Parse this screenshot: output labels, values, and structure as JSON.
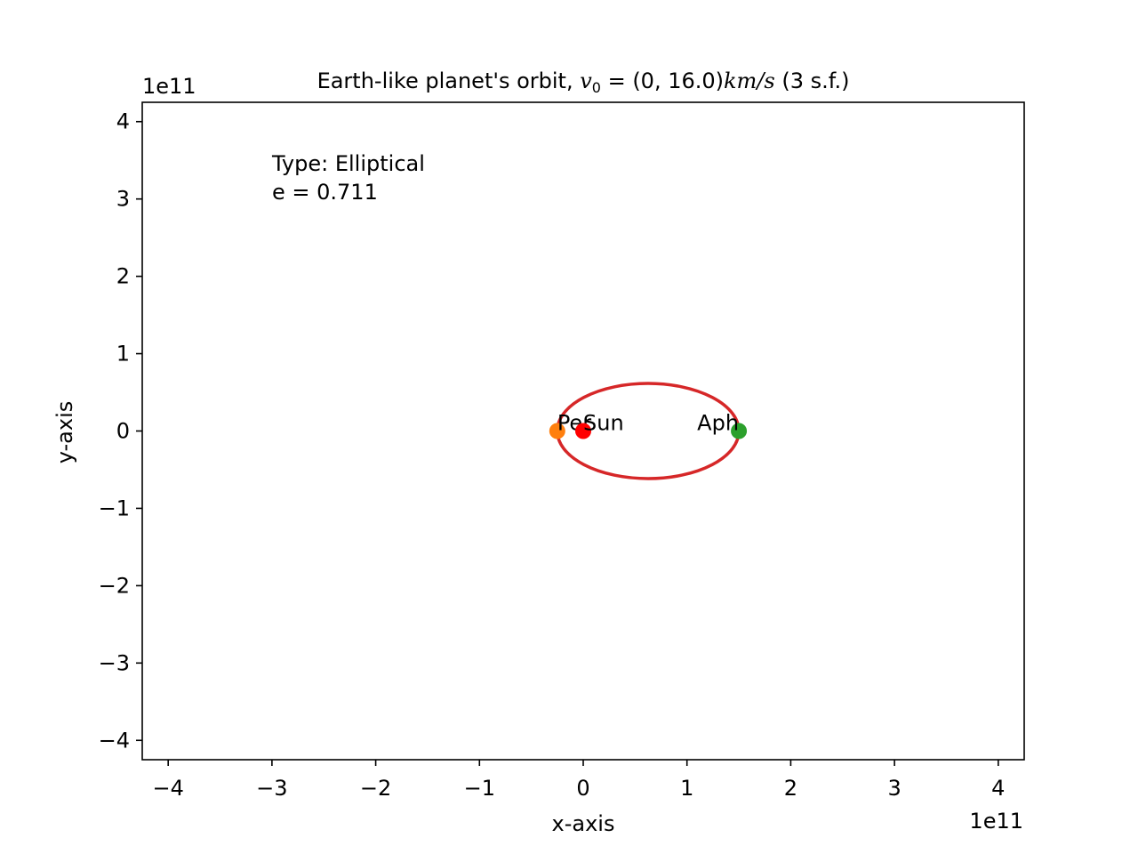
{
  "chart_data": {
    "type": "scatter",
    "title": {
      "prefix": "Earth-like planet's orbit, ",
      "var": "v",
      "sub": "0",
      "eq": " = (0, 16.0)",
      "unit": "km/s",
      "suffix": " (3 s.f.)"
    },
    "xlabel": "x-axis",
    "ylabel": "y-axis",
    "x_offset_label": "1e11",
    "y_offset_label": "1e11",
    "xlim": [
      -4.25,
      4.25
    ],
    "ylim": [
      -4.25,
      4.25
    ],
    "x_ticks": [
      -4,
      -3,
      -2,
      -1,
      0,
      1,
      2,
      3,
      4
    ],
    "y_ticks": [
      -4,
      -3,
      -2,
      -1,
      0,
      1,
      2,
      3,
      4
    ],
    "x_tick_labels": [
      "−4",
      "−3",
      "−2",
      "−1",
      "0",
      "1",
      "2",
      "3",
      "4"
    ],
    "y_tick_labels": [
      "−4",
      "−3",
      "−2",
      "−1",
      "0",
      "1",
      "2",
      "3",
      "4"
    ],
    "grid": false,
    "orbit": {
      "color": "#d62728",
      "center": [
        0.625,
        0
      ],
      "semi_major": 0.875,
      "semi_minor": 0.615
    },
    "points": [
      {
        "label": "Per",
        "x": -0.25,
        "y": 0,
        "color": "#ff7f0e"
      },
      {
        "label": "Sun",
        "x": 0.0,
        "y": 0,
        "color": "#ff0000"
      },
      {
        "label": "Aph",
        "x": 1.5,
        "y": 0,
        "color": "#2ca02c"
      }
    ],
    "annotation": [
      "Type: Elliptical",
      "e = 0.711"
    ]
  }
}
